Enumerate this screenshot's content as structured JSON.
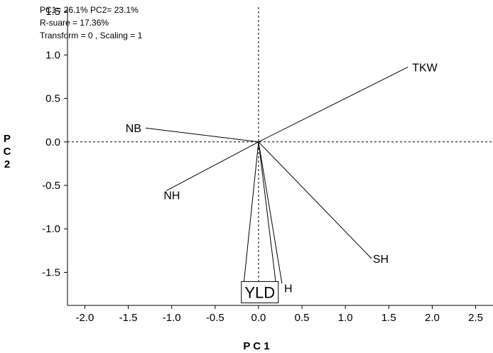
{
  "chart_data": {
    "type": "biplot",
    "info_lines": [
      "PC1= 26.1% PC2= 23.1%",
      "R-suare = 17.36%",
      "Transform = 0 , Scaling = 1"
    ],
    "xlabel": "P C 1",
    "ylabel": "P\nC\n2",
    "xlim": [
      -2.2,
      2.7
    ],
    "ylim": [
      -1.88,
      1.55
    ],
    "xticks": [
      "-2.0",
      "-1.5",
      "-1.0",
      "-0.5",
      "0.0",
      "0.5",
      "1.0",
      "1.5",
      "2.0",
      "2.5"
    ],
    "yticks": [
      "1.5",
      "1.0",
      "0.5",
      "0.0",
      "-0.5",
      "-1.0",
      "-1.5"
    ],
    "vectors": [
      {
        "name": "TKW",
        "x": 1.72,
        "y": 0.86
      },
      {
        "name": "NB",
        "x": -1.3,
        "y": 0.16
      },
      {
        "name": "NH",
        "x": -1.06,
        "y": -0.56
      },
      {
        "name": "SH",
        "x": 1.3,
        "y": -1.34
      },
      {
        "name": "H",
        "x": 0.27,
        "y": -1.63
      },
      {
        "name": "YLD",
        "x": -0.17,
        "y": -1.63,
        "x2": 0.2,
        "y2": -1.63,
        "boxed": true
      }
    ],
    "origin": {
      "x": 0,
      "y": 0
    },
    "reference_lines": {
      "x": 0,
      "y": 0,
      "style": "dashed"
    },
    "grid": false,
    "legend": false
  }
}
